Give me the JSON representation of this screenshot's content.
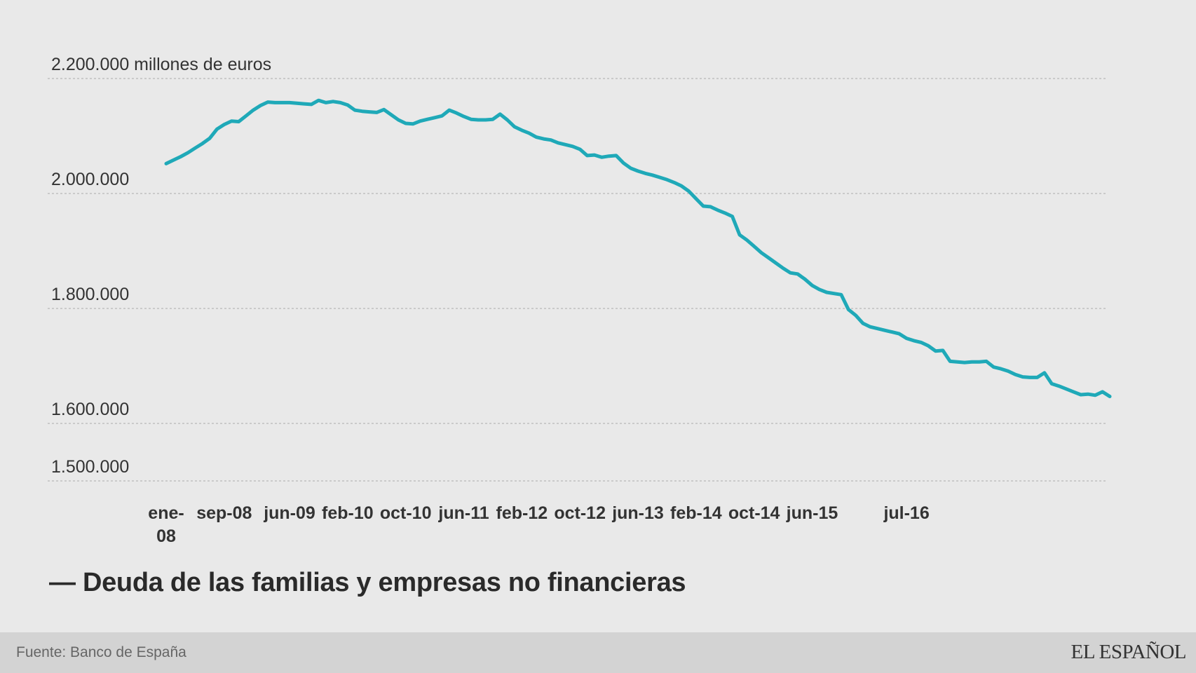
{
  "chart_data": {
    "type": "line",
    "series": [
      {
        "name": "Deuda de las familias y empresas no financieras",
        "color": "#1fa9b8",
        "values": [
          2052,
          2058,
          2064,
          2071,
          2079,
          2087,
          2096,
          2112,
          2120,
          2126,
          2125,
          2135,
          2145,
          2153,
          2159,
          2158,
          2158,
          2158,
          2157,
          2156,
          2155,
          2162,
          2158,
          2160,
          2158,
          2154,
          2145,
          2143,
          2142,
          2141,
          2146,
          2137,
          2128,
          2122,
          2121,
          2126,
          2129,
          2132,
          2135,
          2145,
          2140,
          2134,
          2129,
          2128,
          2128,
          2129,
          2138,
          2128,
          2116,
          2110,
          2105,
          2098,
          2095,
          2093,
          2088,
          2085,
          2082,
          2077,
          2066,
          2067,
          2063,
          2065,
          2066,
          2053,
          2044,
          2039,
          2035,
          2032,
          2028,
          2024,
          2019,
          2013,
          2004,
          1991,
          1978,
          1977,
          1971,
          1966,
          1960,
          1928,
          1919,
          1908,
          1897,
          1888,
          1879,
          1870,
          1862,
          1860,
          1851,
          1840,
          1833,
          1828,
          1826,
          1824,
          1798,
          1788,
          1774,
          1768,
          1765,
          1762,
          1759,
          1756,
          1748,
          1744,
          1741,
          1735,
          1726,
          1727,
          1708,
          1707,
          1706,
          1707,
          1707,
          1708,
          1698,
          1695,
          1691,
          1685,
          1681,
          1680,
          1680,
          1688,
          1669,
          1665,
          1660,
          1655,
          1650,
          1651,
          1649,
          1655,
          1647
        ]
      }
    ],
    "x_tick_labels": [
      "ene-\n08",
      "sep-08",
      "jun-09",
      "feb-10",
      "oct-10",
      "jun-11",
      "feb-12",
      "oct-12",
      "jun-13",
      "feb-14",
      "oct-14",
      "jun-15",
      "jul-16"
    ],
    "x_tick_indices": [
      0,
      8,
      17,
      25,
      33,
      41,
      49,
      57,
      65,
      73,
      81,
      89,
      102
    ],
    "y_ticks": [
      1500000,
      1600000,
      1800000,
      2000000,
      2200000
    ],
    "y_tick_labels": [
      "1.500.000",
      "1.600.000",
      "1.800.000",
      "2.000.000",
      "2.200.000 millones de euros"
    ],
    "ylim": [
      1500000,
      2200000
    ],
    "grid": true,
    "legend": [
      "— Deuda de las familias y empresas no financieras"
    ]
  },
  "footer": {
    "source": "Fuente: Banco de España",
    "logo": "EL ESPAÑOL"
  }
}
